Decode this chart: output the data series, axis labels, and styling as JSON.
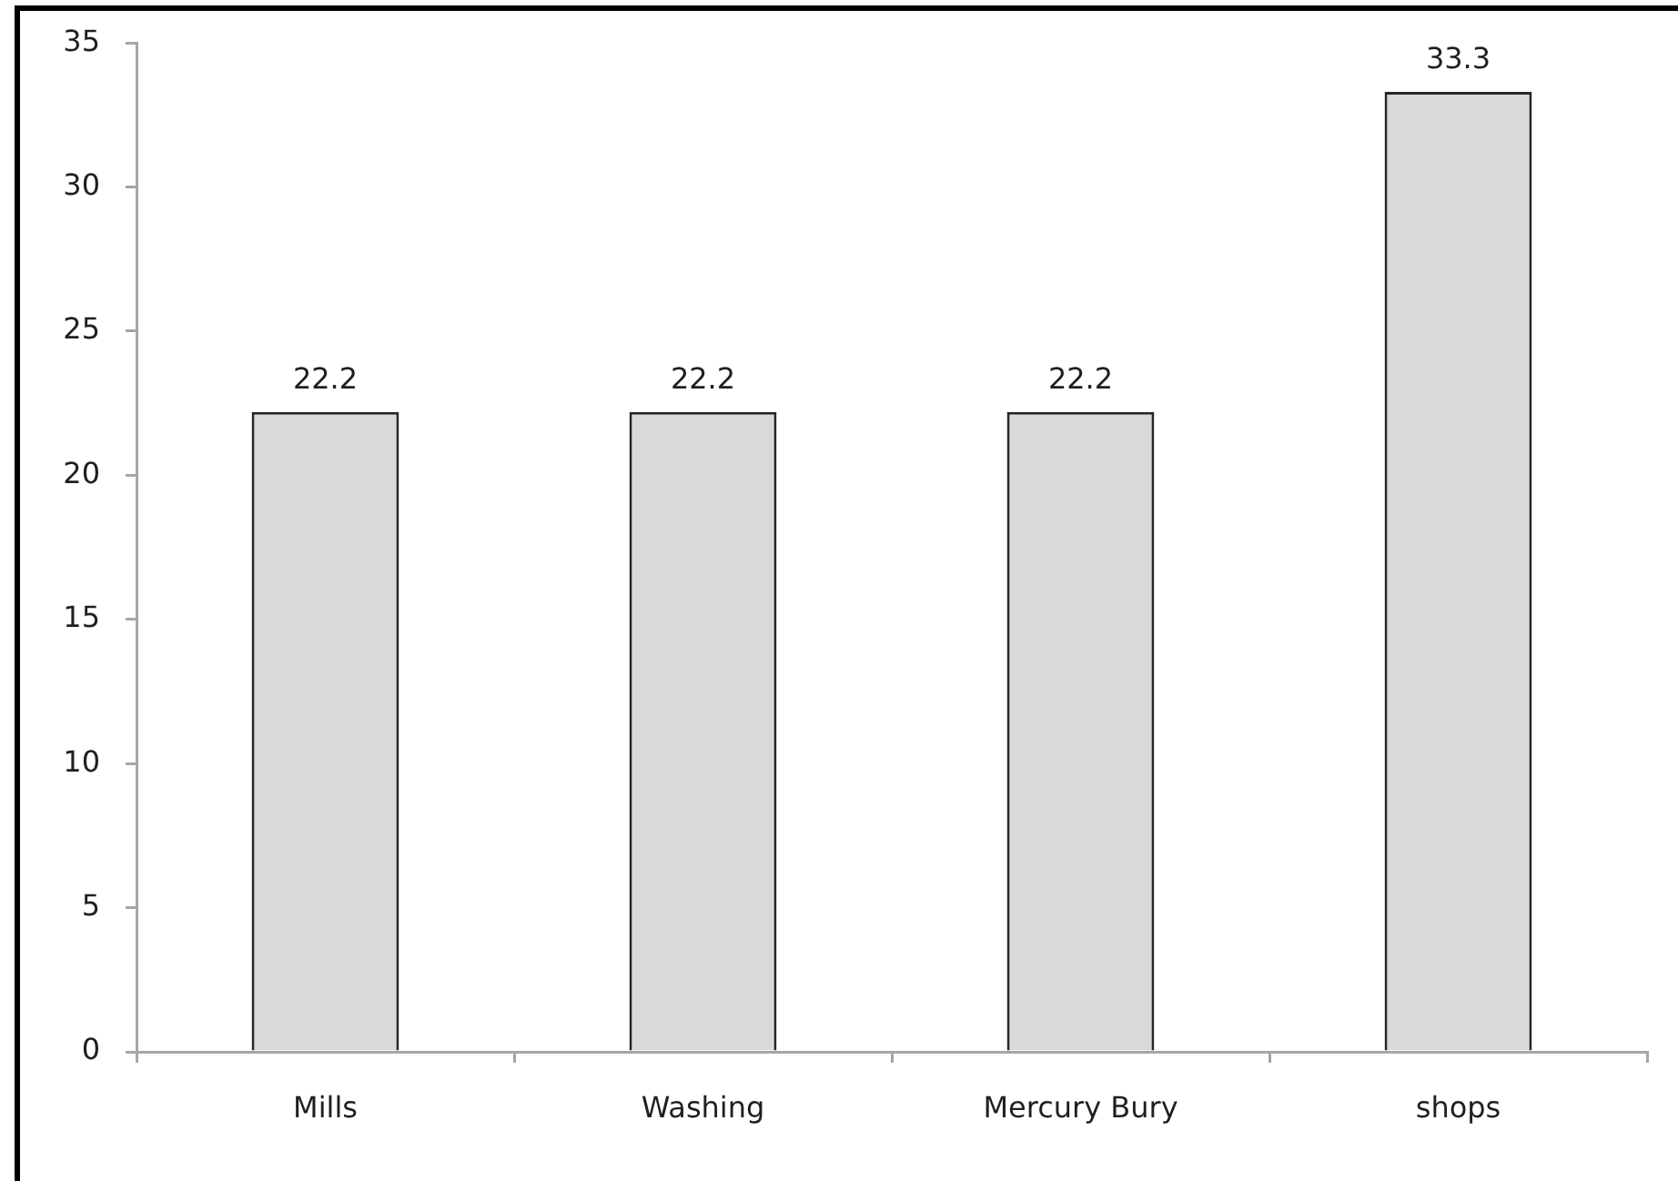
{
  "chart_data": {
    "type": "bar",
    "categories": [
      "Mills",
      "Washing",
      "Mercury Bury",
      "shops"
    ],
    "values": [
      22.2,
      22.2,
      22.2,
      33.3
    ],
    "color": "#d9d9d9",
    "ylim": [
      0,
      35
    ],
    "yticks": [
      0,
      5,
      10,
      15,
      20,
      25,
      30,
      35
    ],
    "data_labels": true,
    "grid": false,
    "legend": false
  }
}
